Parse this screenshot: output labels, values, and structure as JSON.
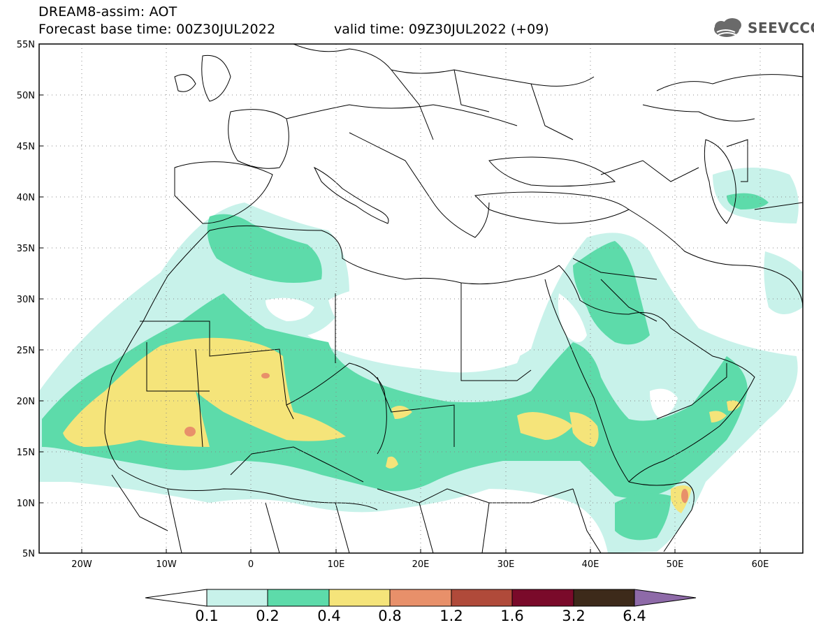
{
  "header": {
    "title": "DREAM8-assim: AOT",
    "base_time": "Forecast base time: 00Z30JUL2022",
    "valid_time": "valid time: 09Z30JUL2022 (+09)"
  },
  "logo": {
    "text": "SEEVCCC",
    "icon": "cloud-icon"
  },
  "map": {
    "lat_ticks": [
      "55N",
      "50N",
      "45N",
      "40N",
      "35N",
      "30N",
      "25N",
      "20N",
      "15N",
      "10N",
      "5N"
    ],
    "lon_ticks": [
      "20W",
      "10W",
      "0",
      "10E",
      "20E",
      "30E",
      "40E",
      "50E",
      "60E"
    ],
    "lon_range": [
      -25,
      65
    ],
    "lat_range": [
      5,
      55
    ]
  },
  "colorbar": {
    "levels": [
      "0.1",
      "0.2",
      "0.4",
      "0.8",
      "1.2",
      "1.6",
      "3.2",
      "6.4"
    ],
    "colors": [
      "#ffffff",
      "#c8f2ea",
      "#5ddbaa",
      "#f5e47a",
      "#e8906a",
      "#b04a3a",
      "#7a0a2a",
      "#3d2a1a",
      "#8e6aa8"
    ]
  }
}
